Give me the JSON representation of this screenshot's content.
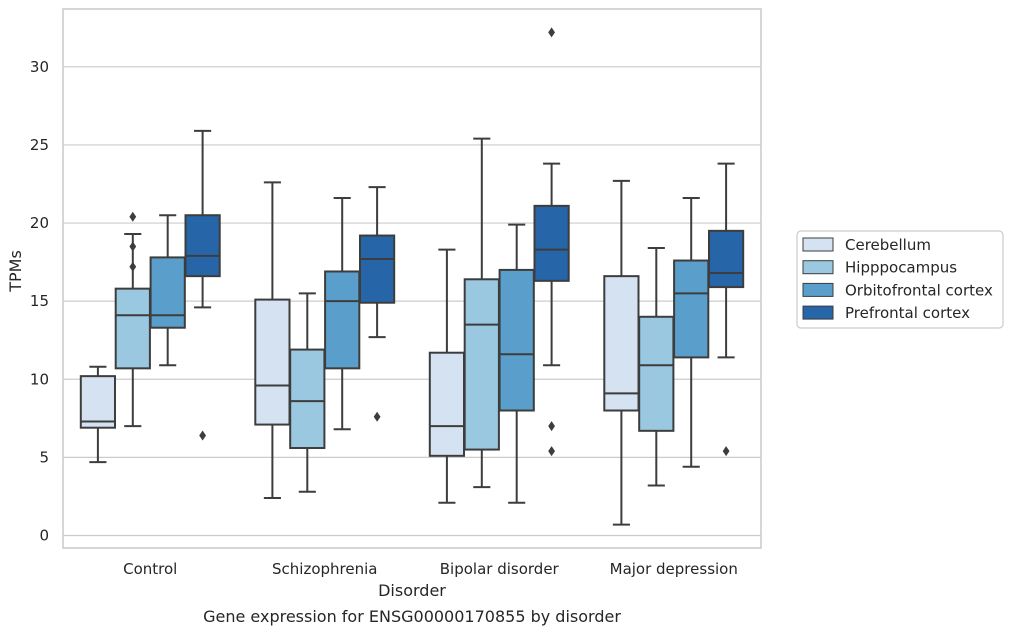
{
  "chart_data": {
    "type": "box",
    "caption": "Gene expression for ENSG00000170855 by disorder",
    "xlabel": "Disorder",
    "ylabel": "TPMs",
    "ylim": [
      -0.8,
      33.7
    ],
    "yticks": [
      0,
      5,
      10,
      15,
      20,
      25,
      30
    ],
    "grid": true,
    "legend": {
      "placement": "right",
      "entries": [
        "Cerebellum",
        "Hipppocampus",
        "Orbitofrontal cortex",
        "Prefrontal cortex"
      ]
    },
    "colors": [
      "#d4e2f2",
      "#9ac8e0",
      "#5a9fcb",
      "#2565a8"
    ],
    "outline_color": "#3d3d3d",
    "categories": [
      "Control",
      "Schizophrenia",
      "Bipolar disorder",
      "Major depression"
    ],
    "series": [
      {
        "name": "Cerebellum",
        "boxes": [
          {
            "whislo": 4.7,
            "q1": 6.9,
            "med": 7.3,
            "q3": 10.2,
            "whishi": 10.8,
            "fliers": []
          },
          {
            "whislo": 2.4,
            "q1": 7.1,
            "med": 9.6,
            "q3": 15.1,
            "whishi": 22.6,
            "fliers": []
          },
          {
            "whislo": 2.1,
            "q1": 5.1,
            "med": 7.0,
            "q3": 11.7,
            "whishi": 18.3,
            "fliers": []
          },
          {
            "whislo": 0.7,
            "q1": 8.0,
            "med": 9.1,
            "q3": 16.6,
            "whishi": 22.7,
            "fliers": []
          }
        ]
      },
      {
        "name": "Hipppocampus",
        "boxes": [
          {
            "whislo": 7.0,
            "q1": 10.7,
            "med": 14.1,
            "q3": 15.8,
            "whishi": 19.3,
            "fliers": [
              17.2,
              18.5,
              20.4
            ]
          },
          {
            "whislo": 2.8,
            "q1": 5.6,
            "med": 8.6,
            "q3": 11.9,
            "whishi": 15.5,
            "fliers": []
          },
          {
            "whislo": 3.1,
            "q1": 5.5,
            "med": 13.5,
            "q3": 16.4,
            "whishi": 25.4,
            "fliers": []
          },
          {
            "whislo": 3.2,
            "q1": 6.7,
            "med": 10.9,
            "q3": 14.0,
            "whishi": 18.4,
            "fliers": []
          }
        ]
      },
      {
        "name": "Orbitofrontal cortex",
        "boxes": [
          {
            "whislo": 10.9,
            "q1": 13.3,
            "med": 14.1,
            "q3": 17.8,
            "whishi": 20.5,
            "fliers": []
          },
          {
            "whislo": 6.8,
            "q1": 10.7,
            "med": 15.0,
            "q3": 16.9,
            "whishi": 21.6,
            "fliers": []
          },
          {
            "whislo": 2.1,
            "q1": 8.0,
            "med": 11.6,
            "q3": 17.0,
            "whishi": 19.9,
            "fliers": []
          },
          {
            "whislo": 4.4,
            "q1": 11.4,
            "med": 15.5,
            "q3": 17.6,
            "whishi": 21.6,
            "fliers": []
          }
        ]
      },
      {
        "name": "Prefrontal cortex",
        "boxes": [
          {
            "whislo": 14.6,
            "q1": 16.6,
            "med": 17.9,
            "q3": 20.5,
            "whishi": 25.9,
            "fliers": [
              6.4
            ]
          },
          {
            "whislo": 12.7,
            "q1": 14.9,
            "med": 17.7,
            "q3": 19.2,
            "whishi": 22.3,
            "fliers": [
              7.6
            ]
          },
          {
            "whislo": 10.9,
            "q1": 16.3,
            "med": 18.3,
            "q3": 21.1,
            "whishi": 23.8,
            "fliers": [
              5.4,
              7.0,
              32.2
            ]
          },
          {
            "whislo": 11.4,
            "q1": 15.9,
            "med": 16.8,
            "q3": 19.5,
            "whishi": 23.8,
            "fliers": [
              5.4
            ]
          }
        ]
      }
    ]
  }
}
